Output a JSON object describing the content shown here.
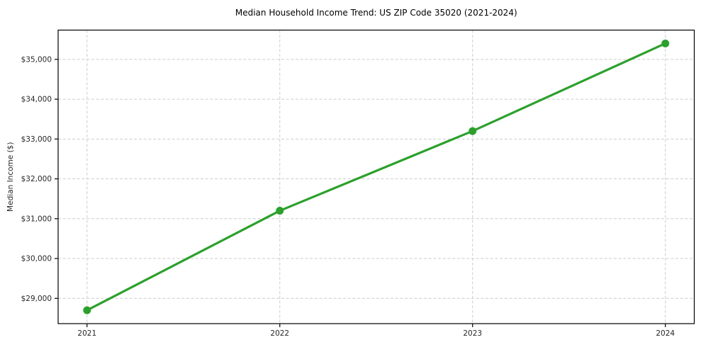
{
  "chart_data": {
    "type": "line",
    "title": "Median Household Income Trend: US ZIP Code 35020 (2021-2024)",
    "xlabel": "",
    "ylabel": "Median Income ($)",
    "x": [
      2021,
      2022,
      2023,
      2024
    ],
    "x_tick_labels": [
      "2021",
      "2022",
      "2023",
      "2024"
    ],
    "series": [
      {
        "name": "Median Household Income",
        "values": [
          28700,
          31200,
          33200,
          35400
        ]
      }
    ],
    "y_ticks": [
      {
        "value": 29000,
        "label": "$29,000"
      },
      {
        "value": 30000,
        "label": "$30,000"
      },
      {
        "value": 31000,
        "label": "$31,000"
      },
      {
        "value": 32000,
        "label": "$32,000"
      },
      {
        "value": 33000,
        "label": "$33,000"
      },
      {
        "value": 34000,
        "label": "$34,000"
      },
      {
        "value": 35000,
        "label": "$35,000"
      }
    ],
    "xlim": [
      2020.85,
      2024.15
    ],
    "ylim": [
      28365,
      35735
    ],
    "grid": true,
    "grid_style": "dashed",
    "legend": "none",
    "line_color": "#2ca02c",
    "marker": "circle",
    "grid_color": "#cccccc",
    "background_color": "#ffffff"
  }
}
